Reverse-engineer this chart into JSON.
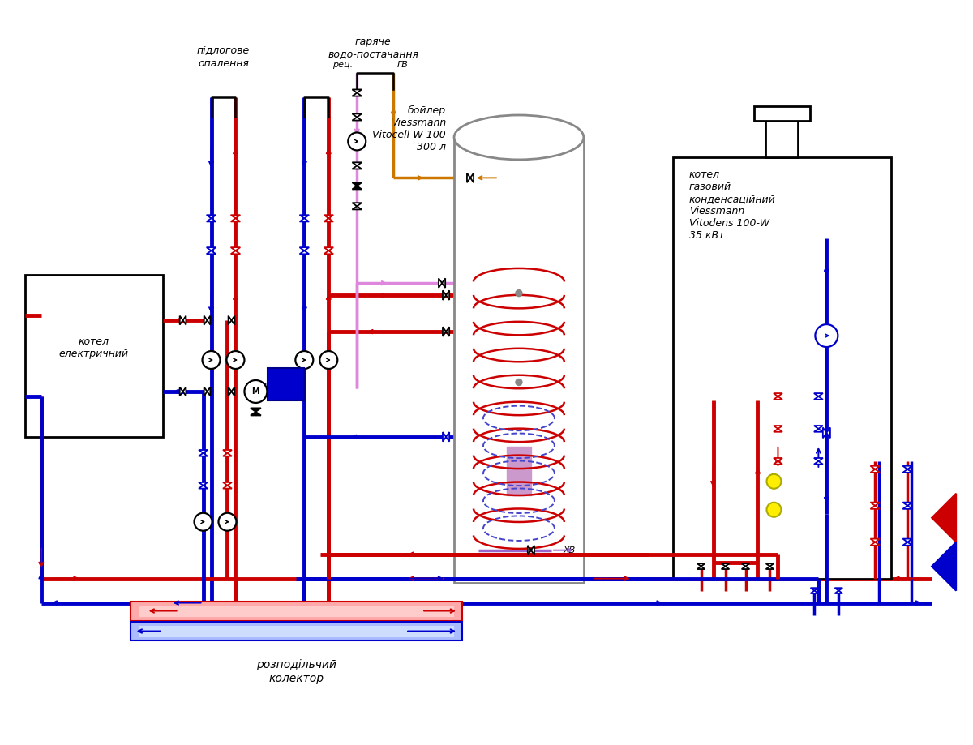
{
  "bg": "#ffffff",
  "red": "#cc0000",
  "blue": "#0000cc",
  "pink": "#dd88dd",
  "orange": "#cc7700",
  "purple": "#9966cc",
  "gray": "#888888",
  "yellow": "#ffee00",
  "lw": 3.5,
  "lw2": 2.5,
  "labels": {
    "pidlogove": "підлогове\nопалення",
    "garyache": "гаряче\nводо-постачання",
    "boyler": "бойлер\nViessmann\nVitocell-W 100\n300 л",
    "kotel_gaz": "котел\nгазовий\nконденсаційний\nViessmann\nVitodens 100-W\n35 кВт",
    "kotel_el": "котел\nелектричний",
    "kollektor": "розподільчий\nколектор",
    "rec": "рец.",
    "gv": "ГВ",
    "xv": "ХВ"
  }
}
